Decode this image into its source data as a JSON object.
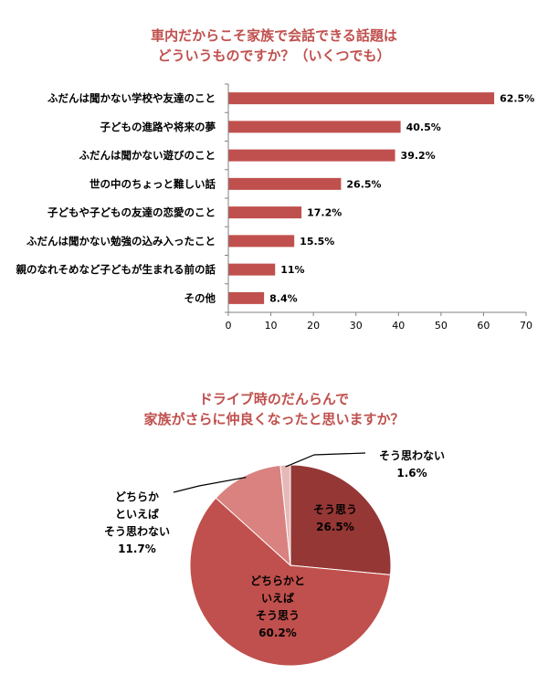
{
  "bar_chart": {
    "title_line1": "車内だからこそ家族で会話できる話題は",
    "title_line2": "どういうものですか？（いくつでも）"
  },
  "pie_chart": {
    "title_line1": "ドライブ時のだんらんで",
    "title_line2": "家族がさらに仲良くなったと思いますか？"
  },
  "colors": {
    "title": "#c0504d",
    "bar": "#c0504d",
    "pie_slices": [
      "#953735",
      "#c0504d",
      "#d9827f",
      "#e6b9b8"
    ]
  },
  "chart_data": [
    {
      "type": "bar",
      "orientation": "horizontal",
      "title": "車内だからこそ家族で会話できる話題は どういうものですか？（いくつでも）",
      "categories": [
        "ふだんは聞かない学校や友達のこと",
        "子どもの進路や将来の夢",
        "ふだんは聞かない遊びのこと",
        "世の中のちょっと難しい話",
        "子どもや子どもの友達の恋愛のこと",
        "ふだんは聞かない勉強の込み入ったこと",
        "親のなれそめなど子どもが生まれる前の話",
        "その他"
      ],
      "values": [
        62.5,
        40.5,
        39.2,
        26.5,
        17.2,
        15.5,
        11,
        8.4
      ],
      "value_labels": [
        "62.5%",
        "40.5%",
        "39.2%",
        "26.5%",
        "17.2%",
        "15.5%",
        "11%",
        "8.4%"
      ],
      "xlim": [
        0,
        70
      ],
      "xticks": [
        0,
        10,
        20,
        30,
        40,
        50,
        60,
        70
      ],
      "grid": false
    },
    {
      "type": "pie",
      "title": "ドライブ時のだんらんで 家族がさらに仲良くなったと思いますか？",
      "slices": [
        {
          "label_lines": [
            "そう思う"
          ],
          "value": 26.5,
          "value_label": "26.5%"
        },
        {
          "label_lines": [
            "どちらかと",
            "いえば",
            "そう思う"
          ],
          "value": 60.2,
          "value_label": "60.2%"
        },
        {
          "label_lines": [
            "どちらか",
            "といえば",
            "そう思わない"
          ],
          "value": 11.7,
          "value_label": "11.7%"
        },
        {
          "label_lines": [
            "そう思わない"
          ],
          "value": 1.6,
          "value_label": "1.6%"
        }
      ]
    }
  ]
}
